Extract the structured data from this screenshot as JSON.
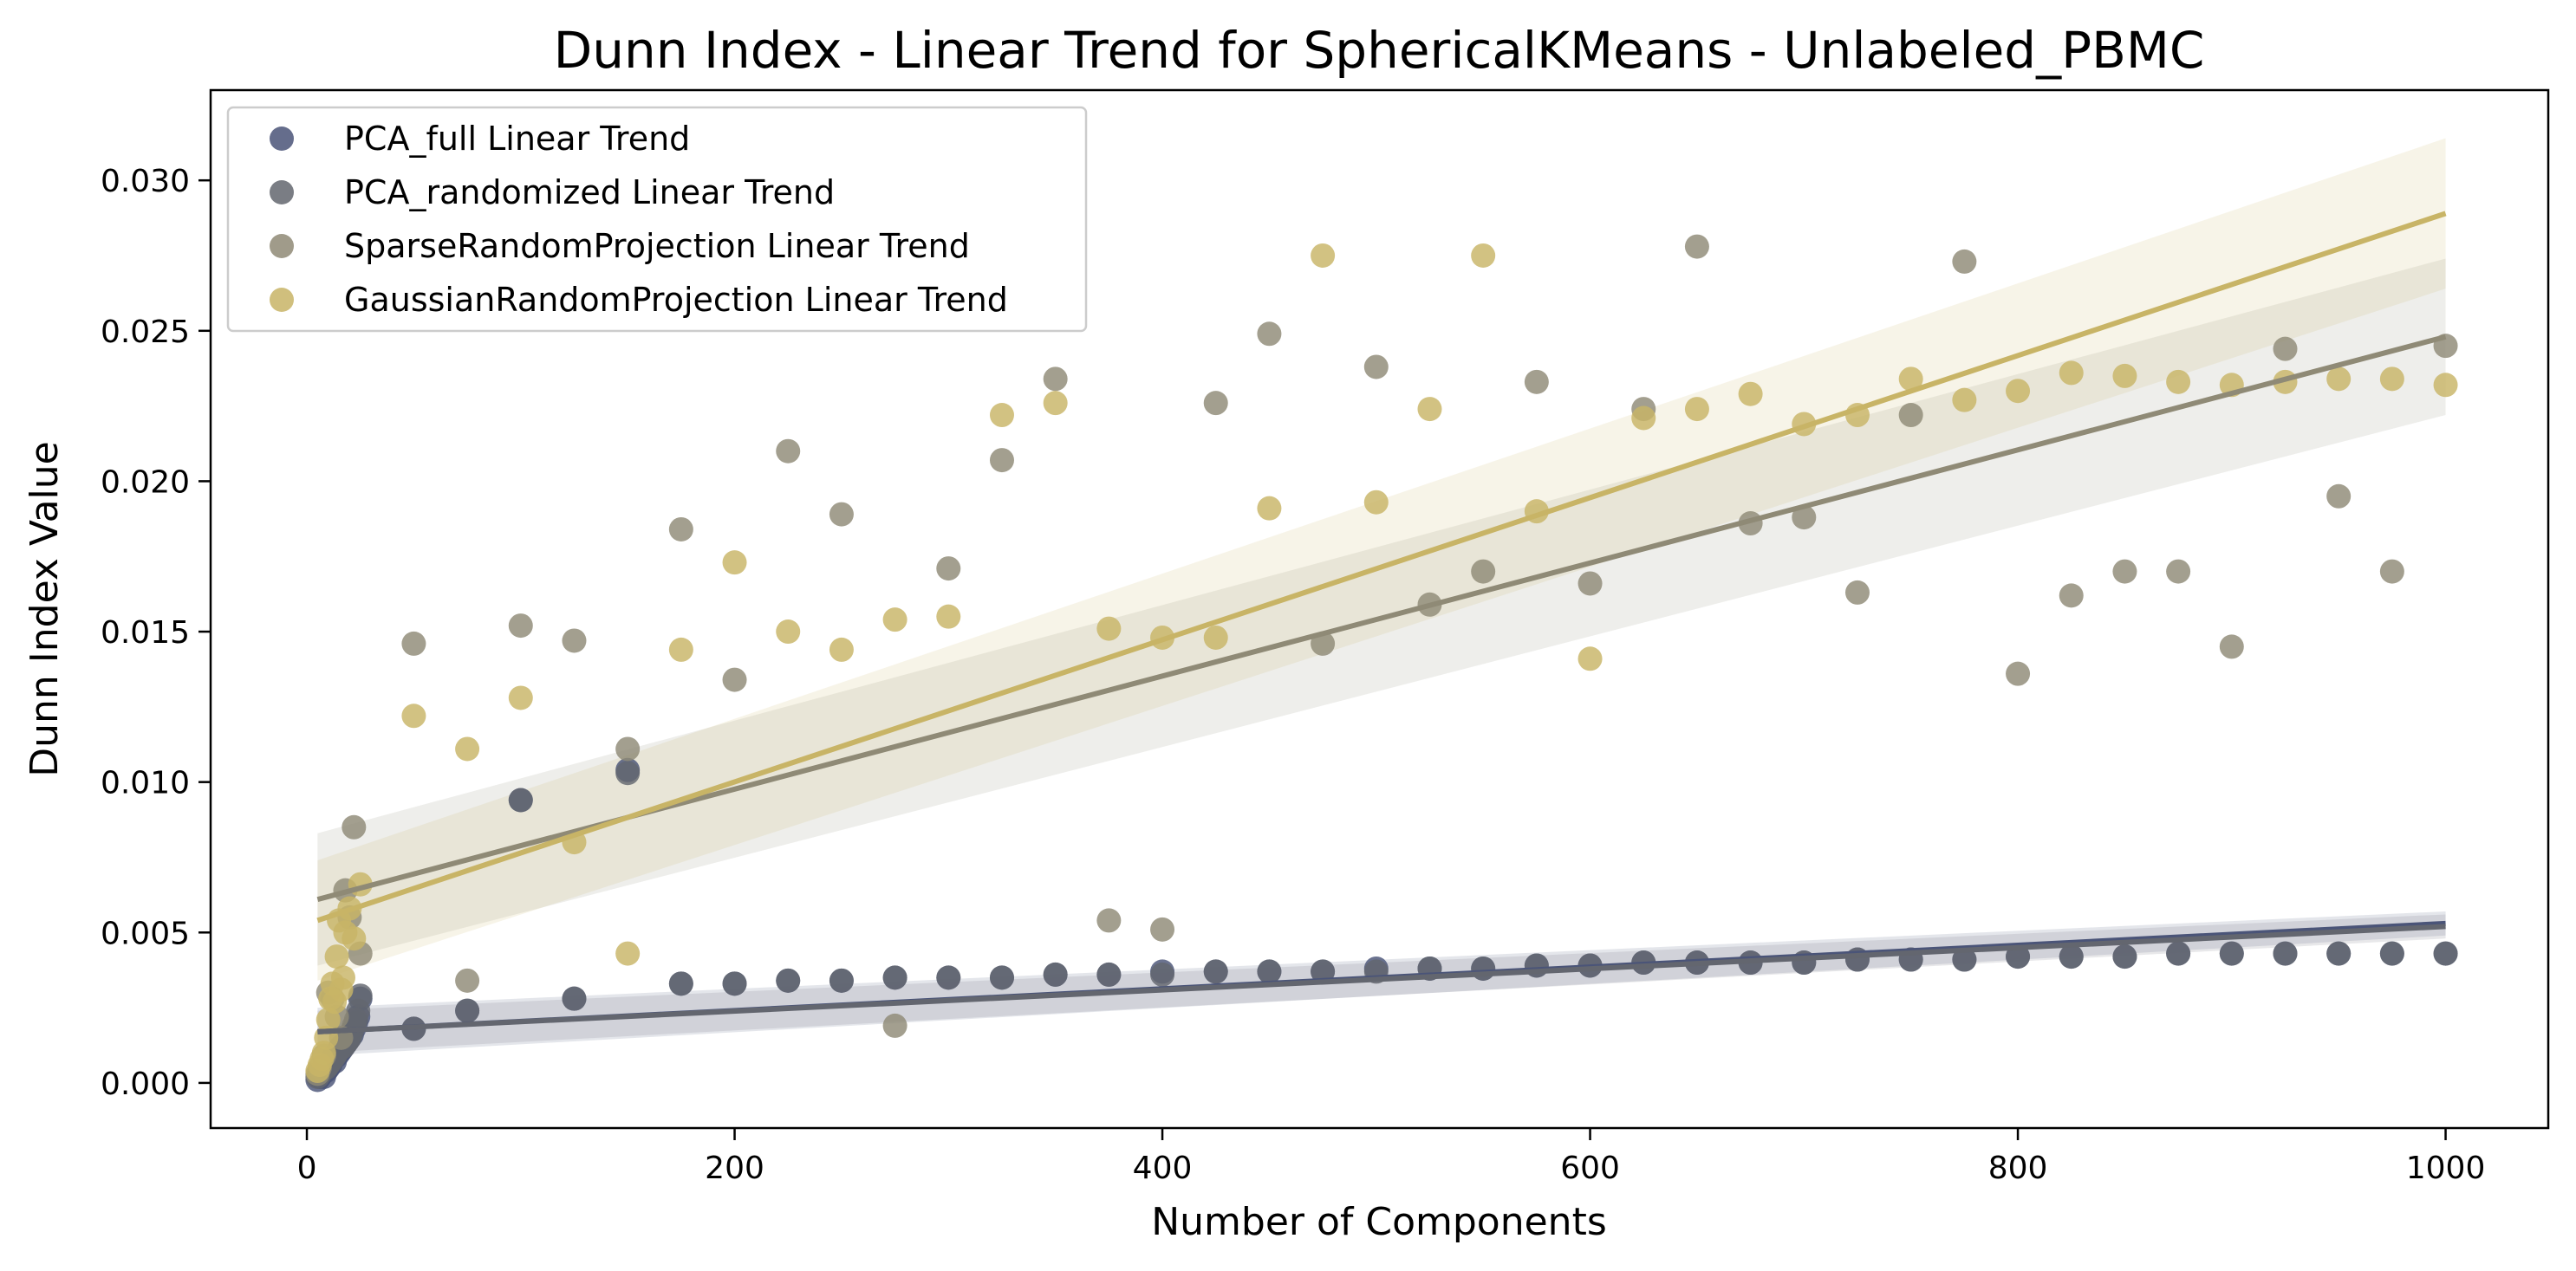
{
  "chart_data": {
    "type": "scatter",
    "title": "Dunn Index - Linear Trend for SphericalKMeans - Unlabeled_PBMC",
    "xlabel": "Number of Components",
    "ylabel": "Dunn Index Value",
    "xlim": [
      -45,
      1048
    ],
    "ylim": [
      -0.0015,
      0.033
    ],
    "xticks": [
      0,
      200,
      400,
      600,
      800,
      1000
    ],
    "yticks": [
      0.0,
      0.005,
      0.01,
      0.015,
      0.02,
      0.025,
      0.03
    ],
    "xtick_labels": [
      "0",
      "200",
      "400",
      "600",
      "800",
      "1000"
    ],
    "ytick_labels": [
      "0.000",
      "0.005",
      "0.010",
      "0.015",
      "0.020",
      "0.025",
      "0.030"
    ],
    "grid": false,
    "legend_position": "top-left",
    "series": [
      {
        "name": "PCA_full Linear Trend",
        "color": "#4a5478",
        "points": [
          [
            5,
            0.0001
          ],
          [
            6,
            0.0002
          ],
          [
            7,
            0.0003
          ],
          [
            8,
            0.0002
          ],
          [
            9,
            0.0004
          ],
          [
            10,
            0.0005
          ],
          [
            11,
            0.0006
          ],
          [
            12,
            0.0008
          ],
          [
            13,
            0.0007
          ],
          [
            14,
            0.0009
          ],
          [
            15,
            0.001
          ],
          [
            16,
            0.0011
          ],
          [
            17,
            0.0012
          ],
          [
            18,
            0.0013
          ],
          [
            19,
            0.0014
          ],
          [
            20,
            0.0015
          ],
          [
            21,
            0.0016
          ],
          [
            22,
            0.0018
          ],
          [
            23,
            0.002
          ],
          [
            24,
            0.0022
          ],
          [
            25,
            0.0028
          ],
          [
            50,
            0.0018
          ],
          [
            75,
            0.0024
          ],
          [
            100,
            0.0094
          ],
          [
            125,
            0.0028
          ],
          [
            150,
            0.0104
          ],
          [
            175,
            0.0033
          ],
          [
            200,
            0.0033
          ],
          [
            225,
            0.0034
          ],
          [
            250,
            0.0034
          ],
          [
            275,
            0.0035
          ],
          [
            300,
            0.0035
          ],
          [
            325,
            0.0035
          ],
          [
            350,
            0.0036
          ],
          [
            375,
            0.0036
          ],
          [
            400,
            0.0037
          ],
          [
            425,
            0.0037
          ],
          [
            450,
            0.0037
          ],
          [
            475,
            0.0037
          ],
          [
            500,
            0.0038
          ],
          [
            525,
            0.0038
          ],
          [
            550,
            0.0038
          ],
          [
            575,
            0.0039
          ],
          [
            600,
            0.0039
          ],
          [
            625,
            0.004
          ],
          [
            650,
            0.004
          ],
          [
            675,
            0.004
          ],
          [
            700,
            0.004
          ],
          [
            725,
            0.0041
          ],
          [
            750,
            0.0041
          ],
          [
            775,
            0.0041
          ],
          [
            800,
            0.0042
          ],
          [
            825,
            0.0042
          ],
          [
            850,
            0.0042
          ],
          [
            875,
            0.0043
          ],
          [
            900,
            0.0043
          ],
          [
            925,
            0.0043
          ],
          [
            950,
            0.0043
          ],
          [
            975,
            0.0043
          ],
          [
            1000,
            0.0043
          ]
        ],
        "trend": {
          "x": [
            5,
            1000
          ],
          "y": [
            0.0017,
            0.0053
          ],
          "ci_halfwidth": [
            0.0008,
            0.0004
          ]
        }
      },
      {
        "name": "PCA_randomized Linear Trend",
        "color": "#63666f",
        "points": [
          [
            5,
            0.0002
          ],
          [
            6,
            0.0003
          ],
          [
            7,
            0.0004
          ],
          [
            8,
            0.0005
          ],
          [
            9,
            0.0005
          ],
          [
            10,
            0.0006
          ],
          [
            11,
            0.0007
          ],
          [
            12,
            0.0008
          ],
          [
            13,
            0.0009
          ],
          [
            14,
            0.001
          ],
          [
            15,
            0.0011
          ],
          [
            16,
            0.0012
          ],
          [
            17,
            0.0012
          ],
          [
            18,
            0.0013
          ],
          [
            19,
            0.0014
          ],
          [
            20,
            0.0015
          ],
          [
            21,
            0.0017
          ],
          [
            22,
            0.0019
          ],
          [
            23,
            0.0021
          ],
          [
            24,
            0.0024
          ],
          [
            25,
            0.0029
          ],
          [
            50,
            0.0018
          ],
          [
            75,
            0.0024
          ],
          [
            100,
            0.0094
          ],
          [
            125,
            0.0028
          ],
          [
            150,
            0.0103
          ],
          [
            175,
            0.0033
          ],
          [
            200,
            0.0033
          ],
          [
            225,
            0.0034
          ],
          [
            250,
            0.0034
          ],
          [
            275,
            0.0035
          ],
          [
            300,
            0.0035
          ],
          [
            325,
            0.0035
          ],
          [
            350,
            0.0036
          ],
          [
            375,
            0.0036
          ],
          [
            400,
            0.0036
          ],
          [
            425,
            0.0037
          ],
          [
            450,
            0.0037
          ],
          [
            475,
            0.0037
          ],
          [
            500,
            0.0037
          ],
          [
            525,
            0.0038
          ],
          [
            550,
            0.0038
          ],
          [
            575,
            0.0039
          ],
          [
            600,
            0.0039
          ],
          [
            625,
            0.004
          ],
          [
            650,
            0.004
          ],
          [
            675,
            0.004
          ],
          [
            700,
            0.004
          ],
          [
            725,
            0.0041
          ],
          [
            750,
            0.0041
          ],
          [
            775,
            0.0041
          ],
          [
            800,
            0.0042
          ],
          [
            825,
            0.0042
          ],
          [
            850,
            0.0042
          ],
          [
            875,
            0.0043
          ],
          [
            900,
            0.0043
          ],
          [
            925,
            0.0043
          ],
          [
            950,
            0.0043
          ],
          [
            975,
            0.0043
          ],
          [
            1000,
            0.0043
          ]
        ],
        "trend": {
          "x": [
            5,
            1000
          ],
          "y": [
            0.0017,
            0.0052
          ],
          "ci_halfwidth": [
            0.0007,
            0.0004
          ]
        }
      },
      {
        "name": "SparseRandomProjection Linear Trend",
        "color": "#8f8a76",
        "points": [
          [
            5,
            0.0003
          ],
          [
            6,
            0.0005
          ],
          [
            8,
            0.0009
          ],
          [
            10,
            0.003
          ],
          [
            12,
            0.0028
          ],
          [
            14,
            0.0022
          ],
          [
            16,
            0.0015
          ],
          [
            18,
            0.0064
          ],
          [
            20,
            0.0055
          ],
          [
            22,
            0.0085
          ],
          [
            25,
            0.0043
          ],
          [
            50,
            0.0146
          ],
          [
            75,
            0.0034
          ],
          [
            100,
            0.0152
          ],
          [
            125,
            0.0147
          ],
          [
            150,
            0.0111
          ],
          [
            175,
            0.0184
          ],
          [
            200,
            0.0134
          ],
          [
            225,
            0.021
          ],
          [
            250,
            0.0189
          ],
          [
            275,
            0.0019
          ],
          [
            300,
            0.0171
          ],
          [
            325,
            0.0207
          ],
          [
            350,
            0.0234
          ],
          [
            375,
            0.0054
          ],
          [
            400,
            0.0051
          ],
          [
            425,
            0.0226
          ],
          [
            450,
            0.0249
          ],
          [
            475,
            0.0146
          ],
          [
            500,
            0.0238
          ],
          [
            525,
            0.0159
          ],
          [
            550,
            0.017
          ],
          [
            575,
            0.0233
          ],
          [
            600,
            0.0166
          ],
          [
            625,
            0.0224
          ],
          [
            650,
            0.0278
          ],
          [
            675,
            0.0186
          ],
          [
            700,
            0.0188
          ],
          [
            725,
            0.0163
          ],
          [
            750,
            0.0222
          ],
          [
            775,
            0.0273
          ],
          [
            800,
            0.0136
          ],
          [
            825,
            0.0162
          ],
          [
            850,
            0.017
          ],
          [
            875,
            0.017
          ],
          [
            900,
            0.0145
          ],
          [
            925,
            0.0244
          ],
          [
            950,
            0.0195
          ],
          [
            975,
            0.017
          ],
          [
            1000,
            0.0245
          ]
        ],
        "trend": {
          "x": [
            5,
            1000
          ],
          "y": [
            0.0061,
            0.0248
          ],
          "ci_halfwidth": [
            0.0022,
            0.0026
          ]
        }
      },
      {
        "name": "GaussianRandomProjection Linear Trend",
        "color": "#c8b466",
        "points": [
          [
            5,
            0.0004
          ],
          [
            6,
            0.0006
          ],
          [
            7,
            0.0008
          ],
          [
            8,
            0.001
          ],
          [
            9,
            0.0015
          ],
          [
            10,
            0.0021
          ],
          [
            11,
            0.0028
          ],
          [
            12,
            0.0033
          ],
          [
            13,
            0.0027
          ],
          [
            14,
            0.0042
          ],
          [
            15,
            0.0054
          ],
          [
            16,
            0.0031
          ],
          [
            17,
            0.0035
          ],
          [
            18,
            0.005
          ],
          [
            20,
            0.0058
          ],
          [
            22,
            0.0048
          ],
          [
            25,
            0.0066
          ],
          [
            50,
            0.0122
          ],
          [
            75,
            0.0111
          ],
          [
            100,
            0.0128
          ],
          [
            125,
            0.008
          ],
          [
            150,
            0.0043
          ],
          [
            175,
            0.0144
          ],
          [
            200,
            0.0173
          ],
          [
            225,
            0.015
          ],
          [
            250,
            0.0144
          ],
          [
            275,
            0.0154
          ],
          [
            300,
            0.0155
          ],
          [
            325,
            0.0222
          ],
          [
            350,
            0.0226
          ],
          [
            375,
            0.0151
          ],
          [
            400,
            0.0148
          ],
          [
            425,
            0.0148
          ],
          [
            450,
            0.0191
          ],
          [
            475,
            0.0275
          ],
          [
            500,
            0.0193
          ],
          [
            525,
            0.0224
          ],
          [
            550,
            0.0275
          ],
          [
            575,
            0.019
          ],
          [
            600,
            0.0141
          ],
          [
            625,
            0.0221
          ],
          [
            650,
            0.0224
          ],
          [
            675,
            0.0229
          ],
          [
            700,
            0.0219
          ],
          [
            725,
            0.0222
          ],
          [
            750,
            0.0234
          ],
          [
            775,
            0.0227
          ],
          [
            800,
            0.023
          ],
          [
            825,
            0.0236
          ],
          [
            850,
            0.0235
          ],
          [
            875,
            0.0233
          ],
          [
            900,
            0.0232
          ],
          [
            925,
            0.0233
          ],
          [
            950,
            0.0234
          ],
          [
            975,
            0.0234
          ],
          [
            1000,
            0.0232
          ]
        ],
        "trend": {
          "x": [
            5,
            1000
          ],
          "y": [
            0.0054,
            0.0289
          ],
          "ci_halfwidth": [
            0.002,
            0.0025
          ]
        }
      }
    ]
  }
}
